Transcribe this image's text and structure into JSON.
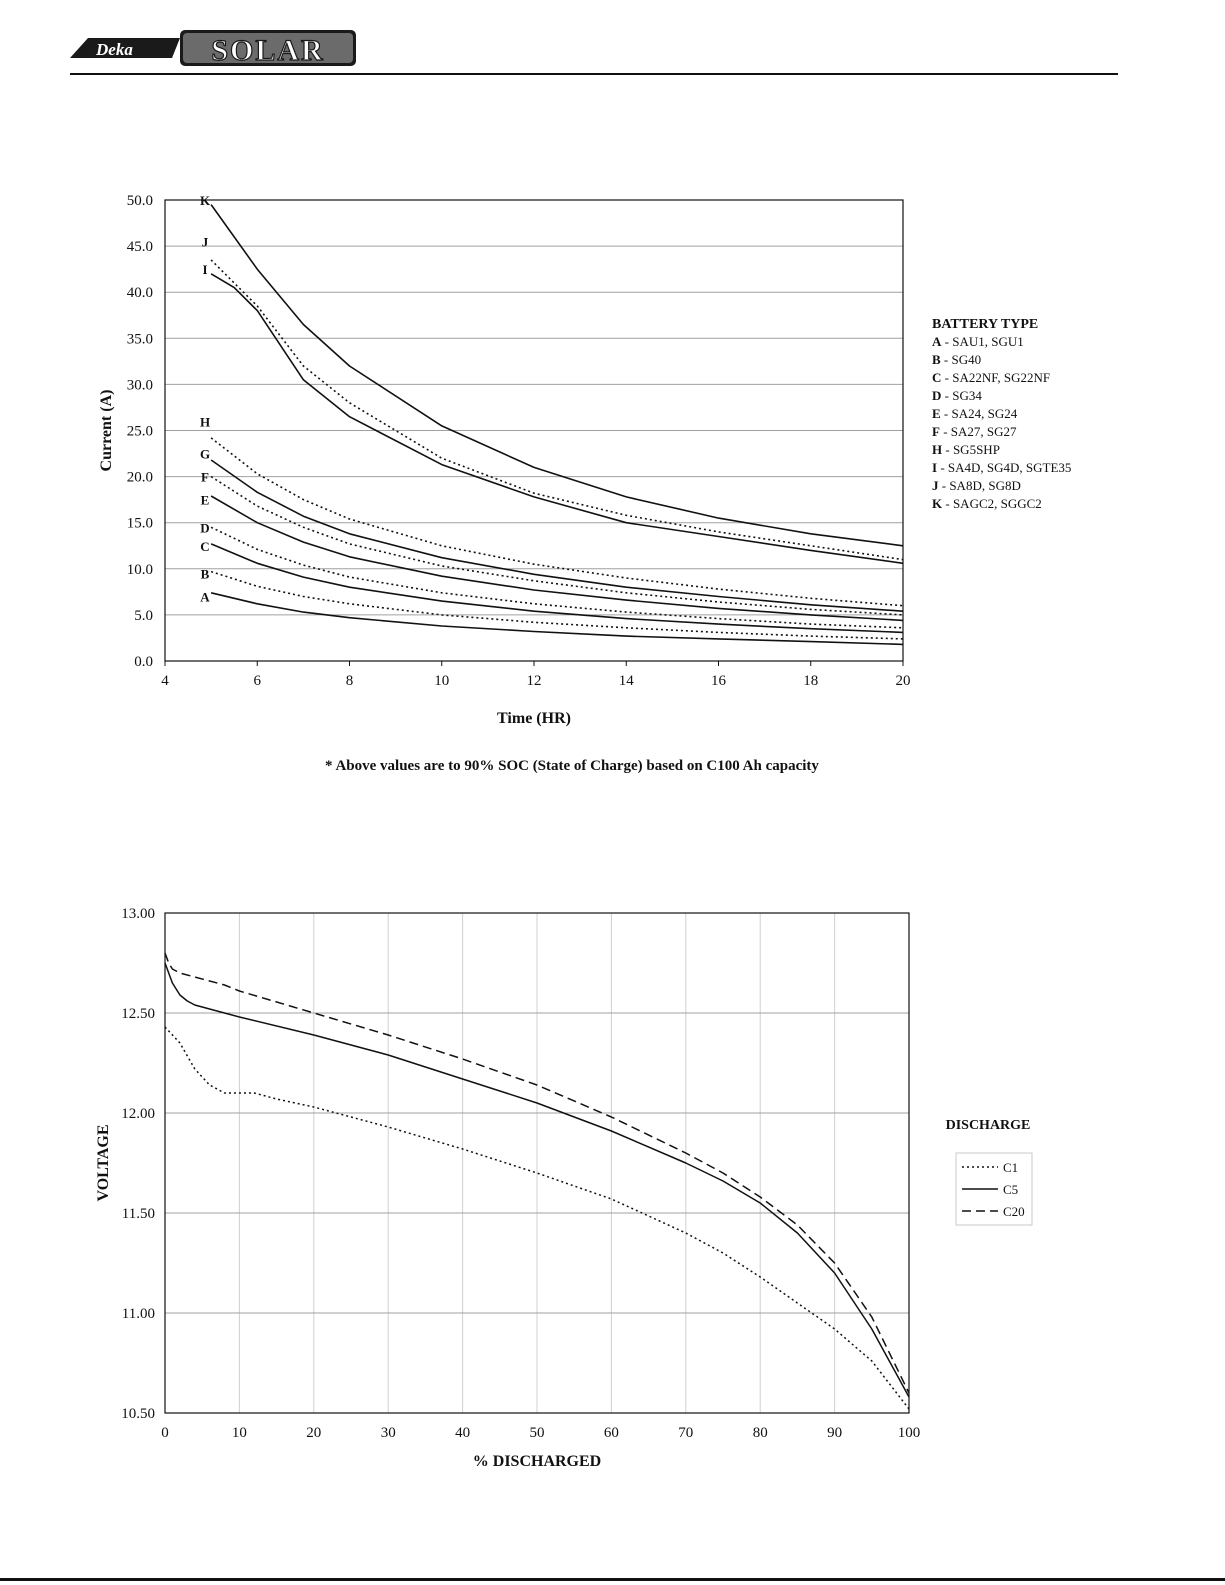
{
  "header": {
    "logo_text_small": "Deka",
    "logo_text_large": "SOLAR"
  },
  "colors": {
    "ink": "#111111",
    "grid": "#a0a0a0",
    "grid_light": "#d0d0d0"
  },
  "chart_data": [
    {
      "type": "line",
      "title": "",
      "xlabel": "Time (HR)",
      "ylabel": "Current (A)",
      "xlim": [
        4,
        20
      ],
      "ylim": [
        0,
        50
      ],
      "x_ticks": [
        "4",
        "6",
        "8",
        "10",
        "12",
        "14",
        "16",
        "18",
        "20"
      ],
      "y_ticks": [
        "0.0",
        "5.0",
        "10.0",
        "15.0",
        "20.0",
        "25.0",
        "30.0",
        "35.0",
        "40.0",
        "45.0",
        "50.0"
      ],
      "grid": "horizontal",
      "legend_placement": "right",
      "legend_title": "BATTERY TYPE",
      "footnote": "* Above values are to 90% SOC (State of Charge) based on C100 Ah capacity",
      "series": [
        {
          "label": "A",
          "legend_desc": " - SAU1, SGU1",
          "style": "solid",
          "label_y": 7.0,
          "x": [
            5,
            6,
            7,
            8,
            10,
            12,
            14,
            16,
            18,
            20
          ],
          "y": [
            7.4,
            6.2,
            5.3,
            4.7,
            3.8,
            3.2,
            2.7,
            2.4,
            2.1,
            1.8
          ]
        },
        {
          "label": "B",
          "legend_desc": " - SG40",
          "style": "dotted",
          "label_y": 9.5,
          "x": [
            5,
            6,
            7,
            8,
            10,
            12,
            14,
            16,
            18,
            20
          ],
          "y": [
            9.7,
            8.1,
            7.0,
            6.2,
            5.0,
            4.2,
            3.6,
            3.1,
            2.7,
            2.4
          ]
        },
        {
          "label": "C",
          "legend_desc": " - SA22NF, SG22NF",
          "style": "solid",
          "label_y": 12.5,
          "x": [
            5,
            6,
            7,
            8,
            10,
            12,
            14,
            16,
            18,
            20
          ],
          "y": [
            12.7,
            10.6,
            9.1,
            8.0,
            6.5,
            5.4,
            4.6,
            4.0,
            3.5,
            3.1
          ]
        },
        {
          "label": "D",
          "legend_desc": " - SG34",
          "style": "dotted",
          "label_y": 14.5,
          "x": [
            5,
            6,
            7,
            8,
            10,
            12,
            14,
            16,
            18,
            20
          ],
          "y": [
            14.5,
            12.1,
            10.4,
            9.1,
            7.4,
            6.2,
            5.3,
            4.6,
            4.0,
            3.6
          ]
        },
        {
          "label": "E",
          "legend_desc": " - SA24, SG24",
          "style": "solid",
          "label_y": 17.5,
          "x": [
            5,
            6,
            7,
            8,
            10,
            12,
            14,
            16,
            18,
            20
          ],
          "y": [
            17.9,
            15.0,
            12.9,
            11.3,
            9.2,
            7.7,
            6.6,
            5.7,
            5.0,
            4.4
          ]
        },
        {
          "label": "F",
          "legend_desc": " - SA27, SG27",
          "style": "dotted",
          "label_y": 20.0,
          "x": [
            5,
            6,
            7,
            8,
            10,
            12,
            14,
            16,
            18,
            20
          ],
          "y": [
            20.0,
            16.8,
            14.5,
            12.7,
            10.3,
            8.7,
            7.4,
            6.4,
            5.6,
            5.0
          ]
        },
        {
          "label": "G",
          "legend_desc": "",
          "style": "solid",
          "label_y": 22.5,
          "x": [
            5,
            6,
            7,
            8,
            10,
            12,
            14,
            16,
            18,
            20
          ],
          "y": [
            21.8,
            18.3,
            15.7,
            13.8,
            11.2,
            9.4,
            8.0,
            7.0,
            6.1,
            5.4
          ]
        },
        {
          "label": "H",
          "legend_desc": " - SG5SHP",
          "style": "dotted",
          "label_y": 26.0,
          "x": [
            5,
            6,
            7,
            8,
            10,
            12,
            14,
            16,
            18,
            20
          ],
          "y": [
            24.2,
            20.3,
            17.5,
            15.4,
            12.5,
            10.5,
            9.0,
            7.8,
            6.8,
            6.0
          ]
        },
        {
          "label": "I",
          "legend_desc": " - SA4D, SG4D, SGTE35",
          "style": "solid",
          "label_y": 42.5,
          "x": [
            5,
            5.5,
            6,
            7,
            8,
            10,
            12,
            14,
            16,
            18,
            20
          ],
          "y": [
            42.0,
            40.5,
            38.0,
            30.5,
            26.5,
            21.3,
            17.8,
            15.0,
            13.5,
            12.0,
            10.6
          ]
        },
        {
          "label": "J",
          "legend_desc": " - SA8D, SG8D",
          "style": "dotted",
          "label_y": 45.5,
          "x": [
            5,
            5.5,
            6,
            7,
            8,
            10,
            12,
            14,
            16,
            18,
            20
          ],
          "y": [
            43.5,
            41.0,
            38.5,
            32.0,
            28.0,
            22.0,
            18.2,
            15.8,
            14.0,
            12.5,
            11.0
          ]
        },
        {
          "label": "K",
          "legend_desc": " - SAGC2, SGGC2",
          "style": "solid",
          "label_y": 50.0,
          "x": [
            5,
            6,
            7,
            8,
            10,
            12,
            14,
            16,
            18,
            20
          ],
          "y": [
            49.5,
            42.5,
            36.5,
            32.0,
            25.5,
            21.0,
            17.8,
            15.5,
            13.8,
            12.5
          ]
        }
      ]
    },
    {
      "type": "line",
      "title": "",
      "xlabel": "% DISCHARGED",
      "ylabel": "VOLTAGE",
      "xlim": [
        0,
        100
      ],
      "ylim": [
        10.5,
        13.0
      ],
      "x_ticks": [
        "0",
        "10",
        "20",
        "30",
        "40",
        "50",
        "60",
        "70",
        "80",
        "90",
        "100"
      ],
      "y_ticks": [
        "10.50",
        "11.00",
        "11.50",
        "12.00",
        "12.50",
        "13.00"
      ],
      "grid": "both",
      "legend_placement": "right",
      "legend_title": "DISCHARGE",
      "series": [
        {
          "name": "C1",
          "style": "dotted",
          "x": [
            0,
            2,
            4,
            6,
            8,
            10,
            12,
            15,
            20,
            30,
            40,
            50,
            60,
            70,
            75,
            80,
            85,
            90,
            95,
            100
          ],
          "y": [
            12.43,
            12.35,
            12.22,
            12.14,
            12.1,
            12.1,
            12.1,
            12.07,
            12.03,
            11.93,
            11.82,
            11.7,
            11.57,
            11.4,
            11.3,
            11.18,
            11.05,
            10.92,
            10.76,
            10.52
          ]
        },
        {
          "name": "C5",
          "style": "solid",
          "x": [
            0,
            1,
            2,
            3,
            4,
            5,
            6,
            8,
            10,
            20,
            30,
            40,
            50,
            60,
            70,
            75,
            80,
            85,
            90,
            95,
            100
          ],
          "y": [
            12.75,
            12.65,
            12.59,
            12.56,
            12.54,
            12.53,
            12.52,
            12.5,
            12.48,
            12.39,
            12.29,
            12.17,
            12.05,
            11.91,
            11.75,
            11.66,
            11.55,
            11.4,
            11.2,
            10.92,
            10.58
          ]
        },
        {
          "name": "C20",
          "style": "dashed",
          "x": [
            0,
            0.5,
            1,
            2,
            4,
            6,
            8,
            10,
            20,
            30,
            40,
            50,
            60,
            70,
            75,
            80,
            85,
            90,
            95,
            100
          ],
          "y": [
            12.8,
            12.75,
            12.72,
            12.7,
            12.68,
            12.66,
            12.64,
            12.61,
            12.5,
            12.39,
            12.27,
            12.14,
            11.98,
            11.8,
            11.7,
            11.58,
            11.44,
            11.25,
            10.98,
            10.6
          ]
        }
      ]
    }
  ]
}
